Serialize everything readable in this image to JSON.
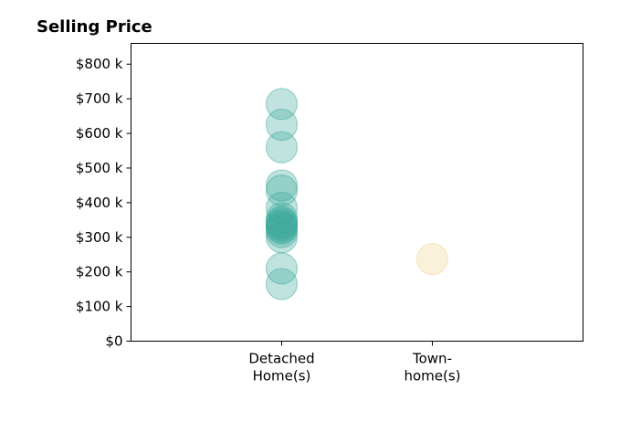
{
  "chart_data": {
    "type": "scatter",
    "title": "Selling Price",
    "xlabel": "",
    "ylabel": "",
    "categories": [
      "Detached Home(s)",
      "Town- home(s)"
    ],
    "category_labels": [
      [
        "Detached",
        "Home(s)"
      ],
      [
        "Town-",
        "home(s)"
      ]
    ],
    "ylim": [
      0,
      860000
    ],
    "yticks": [
      0,
      100000,
      200000,
      300000,
      400000,
      500000,
      600000,
      700000,
      800000
    ],
    "ytick_labels": [
      "$0",
      "$100 k",
      "$200 k",
      "$300 k",
      "$400 k",
      "$500 k",
      "$600 k",
      "$700 k",
      "$800 k"
    ],
    "grid": false,
    "series": [
      {
        "category": "Detached Home(s)",
        "color": "#3aa99a",
        "values": [
          685000,
          625000,
          560000,
          450000,
          435000,
          385000,
          355000,
          345000,
          340000,
          335000,
          330000,
          325000,
          315000,
          300000,
          210000,
          165000
        ]
      },
      {
        "category": "Town- home(s)",
        "color": "#f0d38f",
        "values": [
          237000
        ]
      }
    ]
  }
}
